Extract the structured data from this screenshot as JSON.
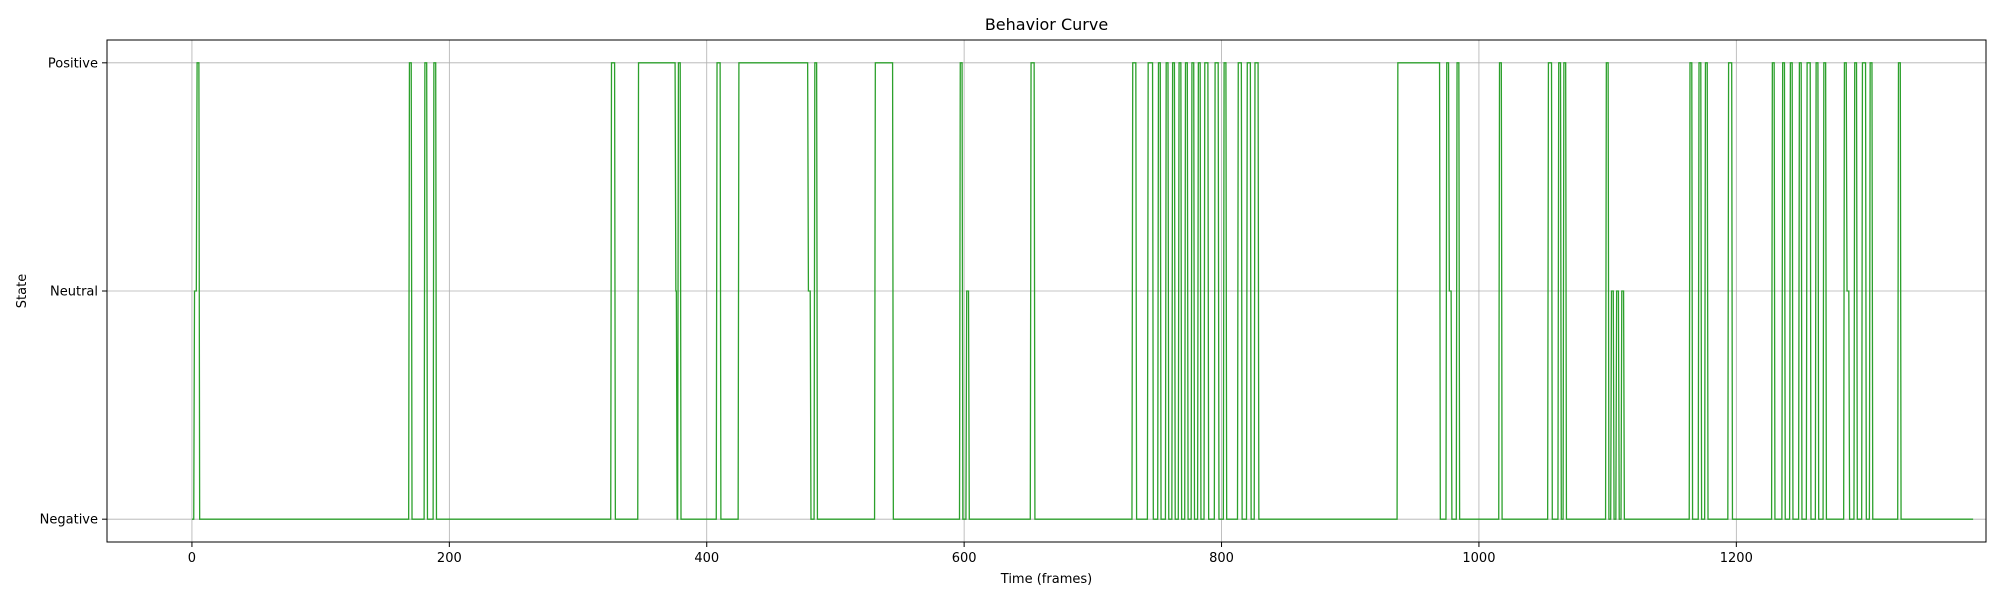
{
  "chart_data": {
    "type": "line",
    "title": "Behavior Curve",
    "xlabel": "Time (frames)",
    "ylabel": "State",
    "xlim": [
      -66,
      1394
    ],
    "ylim": [
      -0.1,
      2.1
    ],
    "xticks": [
      0,
      200,
      400,
      600,
      800,
      1000,
      1200
    ],
    "yticks": [
      {
        "value": 0,
        "label": "Negative"
      },
      {
        "value": 1,
        "label": "Neutral"
      },
      {
        "value": 2,
        "label": "Positive"
      }
    ],
    "grid": true,
    "line_color": "#2ca02c",
    "x_start": 0,
    "x_end": 1384,
    "states": {
      "Negative": 0,
      "Neutral": 1,
      "Positive": 2
    },
    "segments": [
      {
        "x": 0,
        "state": "Negative"
      },
      {
        "x": 2,
        "state": "Neutral"
      },
      {
        "x": 4,
        "state": "Positive"
      },
      {
        "x": 6,
        "state": "Negative"
      },
      {
        "x": 169,
        "state": "Positive"
      },
      {
        "x": 171,
        "state": "Negative"
      },
      {
        "x": 181,
        "state": "Positive"
      },
      {
        "x": 183,
        "state": "Negative"
      },
      {
        "x": 188,
        "state": "Positive"
      },
      {
        "x": 190,
        "state": "Negative"
      },
      {
        "x": 326,
        "state": "Positive"
      },
      {
        "x": 329,
        "state": "Negative"
      },
      {
        "x": 347,
        "state": "Positive"
      },
      {
        "x": 376,
        "state": "Neutral"
      },
      {
        "x": 377,
        "state": "Negative"
      },
      {
        "x": 378,
        "state": "Positive"
      },
      {
        "x": 380,
        "state": "Negative"
      },
      {
        "x": 408,
        "state": "Positive"
      },
      {
        "x": 411,
        "state": "Negative"
      },
      {
        "x": 425,
        "state": "Positive"
      },
      {
        "x": 479,
        "state": "Neutral"
      },
      {
        "x": 481,
        "state": "Negative"
      },
      {
        "x": 484,
        "state": "Positive"
      },
      {
        "x": 486,
        "state": "Negative"
      },
      {
        "x": 531,
        "state": "Positive"
      },
      {
        "x": 545,
        "state": "Negative"
      },
      {
        "x": 597,
        "state": "Positive"
      },
      {
        "x": 599,
        "state": "Negative"
      },
      {
        "x": 602,
        "state": "Neutral"
      },
      {
        "x": 604,
        "state": "Negative"
      },
      {
        "x": 652,
        "state": "Positive"
      },
      {
        "x": 655,
        "state": "Negative"
      },
      {
        "x": 731,
        "state": "Positive"
      },
      {
        "x": 734,
        "state": "Negative"
      },
      {
        "x": 743,
        "state": "Positive"
      },
      {
        "x": 747,
        "state": "Negative"
      },
      {
        "x": 751,
        "state": "Positive"
      },
      {
        "x": 753,
        "state": "Negative"
      },
      {
        "x": 757,
        "state": "Positive"
      },
      {
        "x": 759,
        "state": "Negative"
      },
      {
        "x": 762,
        "state": "Positive"
      },
      {
        "x": 764,
        "state": "Negative"
      },
      {
        "x": 767,
        "state": "Positive"
      },
      {
        "x": 769,
        "state": "Negative"
      },
      {
        "x": 772,
        "state": "Positive"
      },
      {
        "x": 774,
        "state": "Negative"
      },
      {
        "x": 777,
        "state": "Positive"
      },
      {
        "x": 779,
        "state": "Negative"
      },
      {
        "x": 782,
        "state": "Positive"
      },
      {
        "x": 784,
        "state": "Negative"
      },
      {
        "x": 787,
        "state": "Positive"
      },
      {
        "x": 790,
        "state": "Negative"
      },
      {
        "x": 795,
        "state": "Positive"
      },
      {
        "x": 798,
        "state": "Negative"
      },
      {
        "x": 802,
        "state": "Positive"
      },
      {
        "x": 804,
        "state": "Negative"
      },
      {
        "x": 813,
        "state": "Positive"
      },
      {
        "x": 816,
        "state": "Negative"
      },
      {
        "x": 820,
        "state": "Positive"
      },
      {
        "x": 823,
        "state": "Negative"
      },
      {
        "x": 826,
        "state": "Positive"
      },
      {
        "x": 829,
        "state": "Negative"
      },
      {
        "x": 937,
        "state": "Positive"
      },
      {
        "x": 970,
        "state": "Negative"
      },
      {
        "x": 975,
        "state": "Positive"
      },
      {
        "x": 977,
        "state": "Neutral"
      },
      {
        "x": 979,
        "state": "Negative"
      },
      {
        "x": 983,
        "state": "Positive"
      },
      {
        "x": 985,
        "state": "Negative"
      },
      {
        "x": 1016,
        "state": "Positive"
      },
      {
        "x": 1018,
        "state": "Negative"
      },
      {
        "x": 1054,
        "state": "Positive"
      },
      {
        "x": 1057,
        "state": "Negative"
      },
      {
        "x": 1062,
        "state": "Positive"
      },
      {
        "x": 1064,
        "state": "Negative"
      },
      {
        "x": 1066,
        "state": "Positive"
      },
      {
        "x": 1068,
        "state": "Negative"
      },
      {
        "x": 1099,
        "state": "Positive"
      },
      {
        "x": 1101,
        "state": "Negative"
      },
      {
        "x": 1103,
        "state": "Neutral"
      },
      {
        "x": 1105,
        "state": "Negative"
      },
      {
        "x": 1107,
        "state": "Neutral"
      },
      {
        "x": 1109,
        "state": "Negative"
      },
      {
        "x": 1111,
        "state": "Neutral"
      },
      {
        "x": 1113,
        "state": "Negative"
      },
      {
        "x": 1164,
        "state": "Positive"
      },
      {
        "x": 1166,
        "state": "Negative"
      },
      {
        "x": 1171,
        "state": "Positive"
      },
      {
        "x": 1173,
        "state": "Negative"
      },
      {
        "x": 1176,
        "state": "Positive"
      },
      {
        "x": 1178,
        "state": "Negative"
      },
      {
        "x": 1194,
        "state": "Positive"
      },
      {
        "x": 1197,
        "state": "Negative"
      },
      {
        "x": 1228,
        "state": "Positive"
      },
      {
        "x": 1230,
        "state": "Negative"
      },
      {
        "x": 1236,
        "state": "Positive"
      },
      {
        "x": 1238,
        "state": "Negative"
      },
      {
        "x": 1242,
        "state": "Positive"
      },
      {
        "x": 1244,
        "state": "Negative"
      },
      {
        "x": 1249,
        "state": "Positive"
      },
      {
        "x": 1251,
        "state": "Negative"
      },
      {
        "x": 1255,
        "state": "Positive"
      },
      {
        "x": 1258,
        "state": "Negative"
      },
      {
        "x": 1262,
        "state": "Positive"
      },
      {
        "x": 1264,
        "state": "Negative"
      },
      {
        "x": 1268,
        "state": "Positive"
      },
      {
        "x": 1270,
        "state": "Negative"
      },
      {
        "x": 1284,
        "state": "Positive"
      },
      {
        "x": 1286,
        "state": "Neutral"
      },
      {
        "x": 1288,
        "state": "Negative"
      },
      {
        "x": 1292,
        "state": "Positive"
      },
      {
        "x": 1294,
        "state": "Negative"
      },
      {
        "x": 1298,
        "state": "Positive"
      },
      {
        "x": 1301,
        "state": "Negative"
      },
      {
        "x": 1304,
        "state": "Positive"
      },
      {
        "x": 1306,
        "state": "Negative"
      },
      {
        "x": 1326,
        "state": "Positive"
      },
      {
        "x": 1328,
        "state": "Negative"
      }
    ]
  }
}
